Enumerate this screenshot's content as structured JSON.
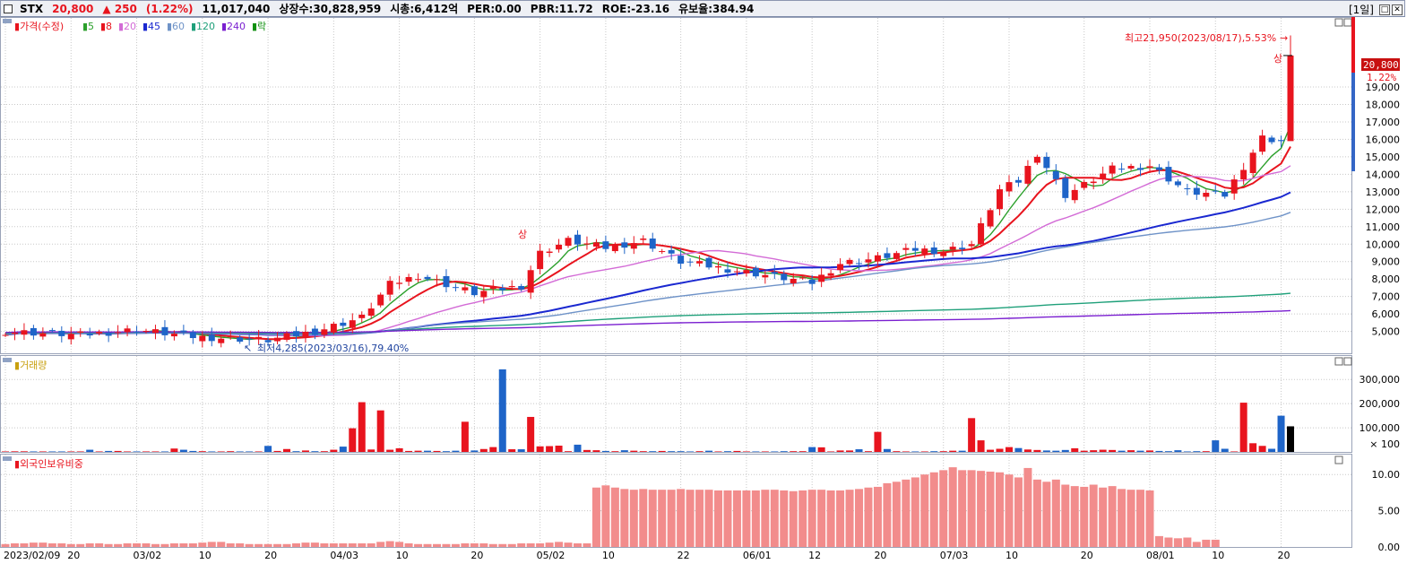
{
  "header": {
    "ticker": "STX",
    "price": "20,800",
    "change": "▲ 250",
    "change_pct": "(1.22%)",
    "volume": "11,017,040",
    "listed_shares": "상장수:30,828,959",
    "market_cap": "시총:6,412억",
    "per": "PER:0.00",
    "pbr": "PBR:11.72",
    "roe": "ROE:-23.16",
    "retention": "유보율:384.94",
    "period": "[1일]"
  },
  "price_legend": {
    "label": "가격(수정)",
    "ma": [
      {
        "label": "5",
        "color": "#2ca02c"
      },
      {
        "label": "8",
        "color": "#e8141e"
      },
      {
        "label": "20",
        "color": "#d36bd6"
      },
      {
        "label": "45",
        "color": "#1a28d0"
      },
      {
        "label": "60",
        "color": "#6f93c8"
      },
      {
        "label": "120",
        "color": "#1fa07a"
      },
      {
        "label": "240",
        "color": "#7a1fd0"
      },
      {
        "label": "락",
        "color": "#109010"
      }
    ]
  },
  "annotations": {
    "high": "최고21,950(2023/08/17),5.53%",
    "low": "최저4,285(2023/03/16),79.40%",
    "limit_up": "상",
    "last_price": "20,800",
    "last_pct": "1.22%"
  },
  "volume_label": "거래량",
  "foreign_label": "외국인보유비중",
  "volume_unit": "× 100",
  "colors": {
    "up": "#e8141e",
    "down": "#1e64c8",
    "foreign": "#f28c8c",
    "text_blue": "#2246a0"
  },
  "chart_data": [
    {
      "type": "candlestick",
      "title": "가격(수정)",
      "yaxis_ticks": [
        "19,000",
        "18,000",
        "17,000",
        "16,000",
        "15,000",
        "14,000",
        "13,000",
        "12,000",
        "11,000",
        "10,000",
        "9,000",
        "8,000",
        "7,000",
        "6,000",
        "5,000"
      ],
      "yaxis_values": [
        19000,
        18000,
        17000,
        16000,
        15000,
        14000,
        13000,
        12000,
        11000,
        10000,
        9000,
        8000,
        7000,
        6000,
        5000
      ],
      "ylim": [
        3800,
        22800
      ],
      "x_dates": [
        "2023/02/09",
        "20",
        "03/02",
        "10",
        "20",
        "04/03",
        "10",
        "20",
        "05/02",
        "10",
        "22",
        "06/01",
        "12",
        "20",
        "07/03",
        "10",
        "20",
        "08/01",
        "10",
        "20"
      ],
      "x_date_index": [
        0,
        7,
        14,
        21,
        28,
        35,
        42,
        50,
        57,
        64,
        72,
        79,
        86,
        93,
        100,
        107,
        115,
        122,
        129,
        136
      ],
      "high": 21950,
      "low": 4285,
      "last": 20800
    },
    {
      "type": "bar",
      "title": "거래량",
      "yaxis_ticks": [
        "300,000",
        "200,000",
        "100,000"
      ],
      "yaxis_values": [
        3000,
        2000,
        1000
      ],
      "unit": "× 100",
      "ylim": [
        0,
        3900
      ],
      "values": [
        20,
        25,
        25,
        20,
        20,
        20,
        20,
        20,
        20,
        90,
        20,
        40,
        40,
        20,
        20,
        20,
        20,
        20,
        140,
        90,
        40,
        30,
        20,
        20,
        30,
        20,
        20,
        20,
        250,
        40,
        120,
        30,
        60,
        30,
        30,
        90,
        220,
        980,
        2060,
        100,
        1720,
        90,
        150,
        40,
        50,
        50,
        40,
        30,
        50,
        1250,
        60,
        120,
        200,
        3420,
        110,
        110,
        1450,
        230,
        240,
        260,
        30,
        300,
        80,
        70,
        40,
        30,
        70,
        50,
        30,
        30,
        40,
        30,
        30,
        20,
        30,
        50,
        20,
        30,
        40,
        20,
        20,
        20,
        20,
        30,
        30,
        30,
        200,
        190,
        20,
        60,
        60,
        110,
        30,
        830,
        120,
        30,
        20,
        20,
        20,
        30,
        30,
        50,
        50,
        1400,
        480,
        90,
        130,
        200,
        160,
        100,
        80,
        60,
        50,
        80,
        150,
        50,
        70,
        90,
        80,
        50,
        70,
        50,
        60,
        40,
        30,
        70,
        20,
        30,
        30,
        480,
        130,
        20,
        2040,
        360,
        250,
        130,
        1500,
        1060
      ],
      "colors": "up_down"
    },
    {
      "type": "bar",
      "title": "외국인보유비중",
      "yaxis_ticks": [
        "10.00",
        "5.00",
        "0.00"
      ],
      "yaxis_values": [
        10,
        5,
        0
      ],
      "ylim": [
        0,
        12.5
      ],
      "values": [
        0.4,
        0.5,
        0.5,
        0.6,
        0.6,
        0.5,
        0.5,
        0.4,
        0.4,
        0.5,
        0.5,
        0.4,
        0.4,
        0.5,
        0.5,
        0.5,
        0.4,
        0.4,
        0.5,
        0.5,
        0.5,
        0.6,
        0.7,
        0.7,
        0.5,
        0.5,
        0.4,
        0.4,
        0.4,
        0.4,
        0.4,
        0.5,
        0.6,
        0.6,
        0.5,
        0.5,
        0.5,
        0.5,
        0.5,
        0.5,
        0.7,
        0.8,
        0.7,
        0.5,
        0.4,
        0.4,
        0.4,
        0.4,
        0.4,
        0.5,
        0.5,
        0.5,
        0.4,
        0.4,
        0.4,
        0.5,
        0.5,
        0.5,
        0.6,
        0.7,
        0.6,
        0.5,
        0.5,
        8.2,
        8.5,
        8.2,
        8.0,
        7.9,
        8.0,
        7.9,
        7.9,
        7.9,
        8.0,
        7.9,
        7.9,
        7.9,
        7.8,
        7.8,
        7.8,
        7.8,
        7.8,
        7.9,
        7.9,
        7.8,
        7.7,
        7.8,
        7.9,
        7.9,
        7.8,
        7.8,
        7.9,
        8.0,
        8.2,
        8.3,
        8.8,
        9.0,
        9.3,
        9.6,
        10.0,
        10.3,
        10.6,
        11.0,
        10.6,
        10.6,
        10.5,
        10.4,
        10.3,
        10.0,
        9.6,
        10.9,
        9.3,
        9.0,
        9.3,
        8.6,
        8.4,
        8.3,
        8.6,
        8.2,
        8.4,
        8.0,
        7.9,
        7.9,
        7.8,
        1.5,
        1.3,
        1.2,
        1.3,
        0.7,
        1.0,
        1.0
      ]
    }
  ]
}
